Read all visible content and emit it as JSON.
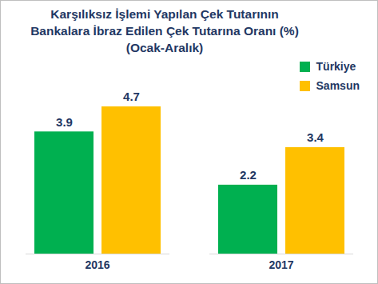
{
  "chart_data": {
    "type": "bar",
    "title": "Karşılıksız İşlemi Yapılan Çek Tutarının Bankalara İbraz Edilen Çek Tutarına Oranı (%) (Ocak-Aralık)",
    "categories": [
      "2016",
      "2017"
    ],
    "series": [
      {
        "name": "Türkiye",
        "color": "#00b050",
        "values": [
          3.9,
          2.2
        ]
      },
      {
        "name": "Samsun",
        "color": "#ffc000",
        "values": [
          4.7,
          3.4
        ]
      }
    ],
    "data_labels": true,
    "legend": "top-right",
    "tick_labels": "x",
    "grid": false
  }
}
